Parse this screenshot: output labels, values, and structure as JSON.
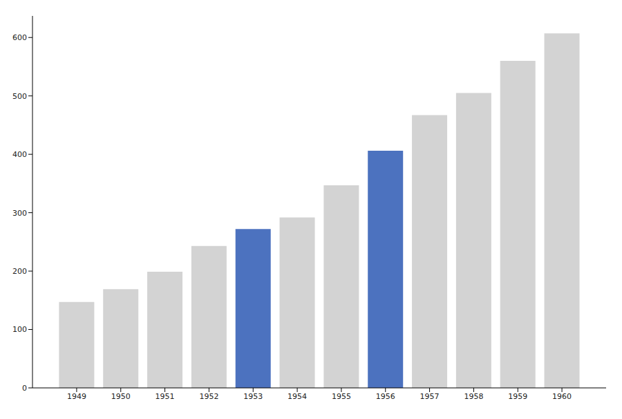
{
  "chart_data": {
    "type": "bar",
    "categories": [
      "1949",
      "1950",
      "1951",
      "1952",
      "1953",
      "1954",
      "1955",
      "1956",
      "1957",
      "1958",
      "1959",
      "1960"
    ],
    "values": [
      147,
      169,
      199,
      243,
      272,
      292,
      347,
      406,
      467,
      505,
      560,
      607
    ],
    "colors": [
      "#d3d3d3",
      "#d3d3d3",
      "#d3d3d3",
      "#d3d3d3",
      "#4c72bf",
      "#d3d3d3",
      "#d3d3d3",
      "#4c72bf",
      "#d3d3d3",
      "#d3d3d3",
      "#d3d3d3",
      "#d3d3d3"
    ],
    "ylim": [
      0,
      637
    ],
    "yticks": [
      0,
      100,
      200,
      300,
      400,
      500,
      600
    ],
    "grid": false
  }
}
